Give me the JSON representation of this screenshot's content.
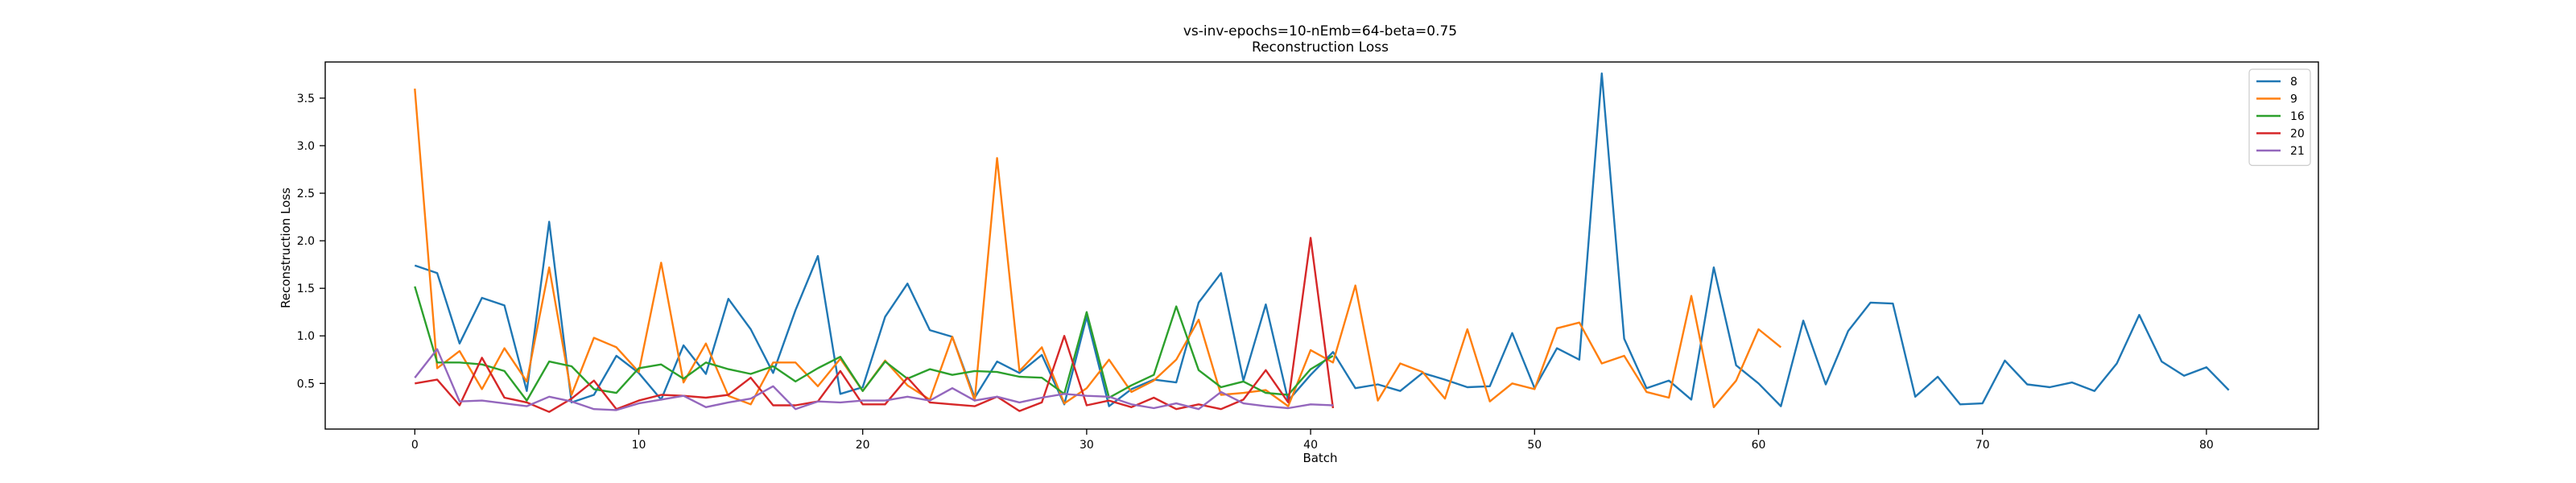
{
  "chart_data": {
    "type": "line",
    "title": "vs-inv-epochs=10-nEmb=64-beta=0.75",
    "subtitle": "Reconstruction Loss",
    "xlabel": "Batch",
    "ylabel": "Reconstruction Loss",
    "xlim": [
      -4,
      85
    ],
    "ylim": [
      0.02,
      3.88
    ],
    "xticks": [
      0,
      10,
      20,
      30,
      40,
      50,
      60,
      70,
      80
    ],
    "yticks": [
      0.5,
      1.0,
      1.5,
      2.0,
      2.5,
      3.0,
      3.5
    ],
    "grid": false,
    "legend_position": "top-right",
    "series": [
      {
        "name": "8",
        "color": "#1f77b4",
        "values": [
          1.74,
          1.66,
          0.92,
          1.4,
          1.32,
          0.42,
          2.2,
          0.3,
          0.38,
          0.79,
          0.61,
          0.33,
          0.9,
          0.6,
          1.39,
          1.07,
          0.61,
          1.27,
          1.84,
          0.39,
          0.46,
          1.2,
          1.55,
          1.06,
          0.99,
          0.35,
          0.73,
          0.61,
          0.8,
          0.28,
          1.2,
          0.26,
          0.44,
          0.54,
          0.51,
          1.35,
          1.66,
          0.53,
          1.33,
          0.32,
          0.59,
          0.83,
          0.45,
          0.49,
          0.42,
          0.61,
          0.54,
          0.46,
          0.47,
          1.03,
          0.45,
          0.87,
          0.75,
          3.76,
          0.97,
          0.45,
          0.53,
          0.33,
          1.72,
          0.69,
          0.5,
          0.26,
          1.16,
          0.49,
          1.05,
          1.35,
          1.34,
          0.36,
          0.57,
          0.28,
          0.29,
          0.74,
          0.49,
          0.46,
          0.51,
          0.42,
          0.71,
          1.22,
          0.73,
          0.58,
          0.67,
          0.43
        ]
      },
      {
        "name": "9",
        "color": "#ff7f0e",
        "values": [
          3.6,
          0.66,
          0.84,
          0.44,
          0.87,
          0.52,
          1.72,
          0.38,
          0.98,
          0.88,
          0.62,
          1.77,
          0.51,
          0.92,
          0.37,
          0.28,
          0.72,
          0.72,
          0.47,
          0.76,
          0.42,
          0.74,
          0.48,
          0.33,
          0.99,
          0.32,
          2.87,
          0.63,
          0.88,
          0.29,
          0.45,
          0.75,
          0.41,
          0.53,
          0.75,
          1.17,
          0.38,
          0.4,
          0.43,
          0.26,
          0.85,
          0.72,
          1.53,
          0.32,
          0.71,
          0.62,
          0.34,
          1.07,
          0.31,
          0.5,
          0.44,
          1.08,
          1.14,
          0.71,
          0.79,
          0.41,
          0.35,
          1.42,
          0.25,
          0.53,
          1.07,
          0.88
        ]
      },
      {
        "name": "16",
        "color": "#2ca02c",
        "values": [
          1.52,
          0.72,
          0.72,
          0.7,
          0.63,
          0.32,
          0.73,
          0.68,
          0.44,
          0.4,
          0.66,
          0.7,
          0.55,
          0.72,
          0.65,
          0.6,
          0.68,
          0.52,
          0.66,
          0.78,
          0.42,
          0.73,
          0.55,
          0.65,
          0.59,
          0.63,
          0.62,
          0.57,
          0.56,
          0.39,
          1.25,
          0.35,
          0.48,
          0.59,
          1.31,
          0.64,
          0.46,
          0.52,
          0.4,
          0.38,
          0.65,
          0.79
        ]
      },
      {
        "name": "20",
        "color": "#d62728",
        "values": [
          0.5,
          0.54,
          0.27,
          0.77,
          0.35,
          0.3,
          0.2,
          0.34,
          0.53,
          0.23,
          0.32,
          0.38,
          0.37,
          0.35,
          0.38,
          0.56,
          0.27,
          0.27,
          0.31,
          0.63,
          0.28,
          0.28,
          0.56,
          0.3,
          0.28,
          0.26,
          0.36,
          0.21,
          0.3,
          1.0,
          0.27,
          0.32,
          0.25,
          0.35,
          0.23,
          0.28,
          0.23,
          0.33,
          0.64,
          0.3,
          2.03,
          0.24
        ]
      },
      {
        "name": "21",
        "color": "#9467bd",
        "values": [
          0.56,
          0.86,
          0.31,
          0.32,
          0.29,
          0.26,
          0.36,
          0.31,
          0.23,
          0.22,
          0.29,
          0.33,
          0.37,
          0.25,
          0.3,
          0.34,
          0.47,
          0.23,
          0.31,
          0.3,
          0.32,
          0.32,
          0.36,
          0.32,
          0.45,
          0.32,
          0.36,
          0.3,
          0.35,
          0.39,
          0.37,
          0.36,
          0.28,
          0.24,
          0.29,
          0.23,
          0.41,
          0.29,
          0.26,
          0.24,
          0.28,
          0.27
        ]
      }
    ]
  }
}
